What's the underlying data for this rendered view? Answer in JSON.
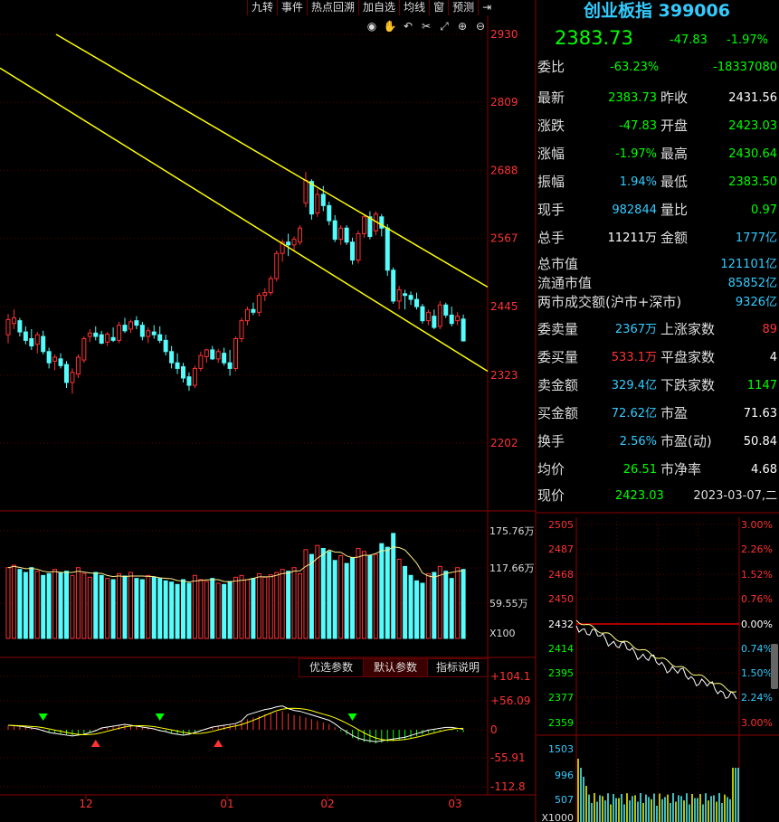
{
  "toolbar": {
    "items": [
      "九转",
      "事件",
      "热点回溯",
      "加自选",
      "均线",
      "窗",
      "预测"
    ],
    "exit_icon": "exit-icon"
  },
  "chart_icons": [
    "eye-icon",
    "hand-icon",
    "undo-icon",
    "scissors-icon",
    "fullscreen-icon",
    "zoom-in-icon",
    "zoom-out-icon"
  ],
  "price_axis": [
    "2930",
    "2809",
    "2688",
    "2567",
    "2445",
    "2323",
    "2202"
  ],
  "volume_axis": [
    "175.76万",
    "117.66万",
    "59.55万",
    "X100"
  ],
  "macd_axis": [
    "+104.1",
    "+56.09",
    "0",
    "-55.91",
    "-112.8"
  ],
  "macd_tabs": [
    "优选参数",
    "默认参数",
    "指标说明"
  ],
  "x_axis": [
    "12",
    "01",
    "02",
    "03"
  ],
  "quote": {
    "name": "创业板指 399006",
    "price": "2383.73",
    "change": "-47.83",
    "change_pct": "-1.97%",
    "weibi_label": "委比",
    "weibi_pct": "-63.23%",
    "weibi_val": "-18337080"
  },
  "stats1": [
    {
      "l1": "最新",
      "v1": "2383.73",
      "c1": "g",
      "l2": "昨收",
      "v2": "2431.56",
      "c2": "w"
    },
    {
      "l1": "涨跌",
      "v1": "-47.83",
      "c1": "g",
      "l2": "开盘",
      "v2": "2423.03",
      "c2": "g"
    },
    {
      "l1": "涨幅",
      "v1": "-1.97%",
      "c1": "g",
      "l2": "最高",
      "v2": "2430.64",
      "c2": "g"
    },
    {
      "l1": "振幅",
      "v1": "1.94%",
      "c1": "c",
      "l2": "最低",
      "v2": "2383.50",
      "c2": "g"
    },
    {
      "l1": "现手",
      "v1": "982844",
      "c1": "c",
      "l2": "量比",
      "v2": "0.97",
      "c2": "g"
    },
    {
      "l1": "总手",
      "v1": "11211万",
      "c1": "w",
      "l2": "金额",
      "v2": "1777亿",
      "c2": "c"
    }
  ],
  "stats2": [
    {
      "l": "总市值",
      "v": "121101亿"
    },
    {
      "l": "流通市值",
      "v": "85852亿"
    },
    {
      "l": "两市成交额(沪市+深市)",
      "v": "9326亿"
    }
  ],
  "stats3": [
    {
      "l1": "委卖量",
      "v1": "2367万",
      "c1": "c",
      "l2": "上涨家数",
      "v2": "89",
      "c2": "r"
    },
    {
      "l1": "委买量",
      "v1": "533.1万",
      "c1": "r",
      "l2": "平盘家数",
      "v2": "4",
      "c2": "w"
    },
    {
      "l1": "卖金额",
      "v1": "329.4亿",
      "c1": "c",
      "l2": "下跌家数",
      "v2": "1147",
      "c2": "g"
    },
    {
      "l1": "买金额",
      "v1": "72.62亿",
      "c1": "c",
      "l2": "市盈",
      "v2": "71.63",
      "c2": "w"
    },
    {
      "l1": "换手",
      "v1": "2.56%",
      "c1": "c",
      "l2": "市盈(动)",
      "v2": "50.84",
      "c2": "w"
    },
    {
      "l1": "均价",
      "v1": "26.51",
      "c1": "g",
      "l2": "市净率",
      "v2": "4.68",
      "c2": "w"
    }
  ],
  "footer": {
    "label": "现价",
    "price": "2423.03",
    "date": "2023-03-07,二"
  },
  "mini_left_axis": [
    "2505",
    "2487",
    "2468",
    "2450",
    "2432",
    "2414",
    "2395",
    "2377",
    "2359"
  ],
  "mini_right_axis": [
    "3.00%",
    "2.26%",
    "1.52%",
    "0.76%",
    "0.00%",
    "0.74%",
    "1.50%",
    "2.24%",
    "3.00%"
  ],
  "mini_vol_axis": [
    "1503",
    "996",
    "507",
    "X1000"
  ],
  "chart_data": {
    "type": "candlestick",
    "ohlc": [
      [
        2395,
        2432,
        2380,
        2422
      ],
      [
        2415,
        2440,
        2405,
        2425
      ],
      [
        2420,
        2425,
        2392,
        2400
      ],
      [
        2400,
        2410,
        2378,
        2385
      ],
      [
        2388,
        2405,
        2368,
        2375
      ],
      [
        2378,
        2400,
        2362,
        2395
      ],
      [
        2392,
        2402,
        2360,
        2365
      ],
      [
        2365,
        2372,
        2335,
        2345
      ],
      [
        2348,
        2360,
        2332,
        2355
      ],
      [
        2352,
        2362,
        2335,
        2340
      ],
      [
        2342,
        2348,
        2300,
        2310
      ],
      [
        2310,
        2335,
        2290,
        2328
      ],
      [
        2325,
        2360,
        2318,
        2355
      ],
      [
        2350,
        2392,
        2345,
        2388
      ],
      [
        2392,
        2405,
        2382,
        2398
      ],
      [
        2398,
        2410,
        2385,
        2392
      ],
      [
        2395,
        2402,
        2378,
        2380
      ],
      [
        2382,
        2400,
        2375,
        2396
      ],
      [
        2390,
        2408,
        2382,
        2385
      ],
      [
        2385,
        2418,
        2380,
        2412
      ],
      [
        2412,
        2425,
        2398,
        2402
      ],
      [
        2405,
        2422,
        2398,
        2418
      ],
      [
        2420,
        2428,
        2405,
        2412
      ],
      [
        2412,
        2418,
        2385,
        2392
      ],
      [
        2392,
        2408,
        2380,
        2402
      ],
      [
        2400,
        2412,
        2388,
        2395
      ],
      [
        2395,
        2410,
        2380,
        2385
      ],
      [
        2385,
        2395,
        2358,
        2365
      ],
      [
        2365,
        2375,
        2335,
        2345
      ],
      [
        2345,
        2362,
        2325,
        2335
      ],
      [
        2338,
        2345,
        2310,
        2318
      ],
      [
        2320,
        2328,
        2295,
        2305
      ],
      [
        2305,
        2340,
        2300,
        2335
      ],
      [
        2335,
        2365,
        2330,
        2358
      ],
      [
        2356,
        2370,
        2345,
        2368
      ],
      [
        2368,
        2375,
        2350,
        2352
      ],
      [
        2352,
        2370,
        2345,
        2365
      ],
      [
        2362,
        2372,
        2340,
        2345
      ],
      [
        2345,
        2368,
        2322,
        2335
      ],
      [
        2335,
        2392,
        2330,
        2388
      ],
      [
        2388,
        2425,
        2382,
        2420
      ],
      [
        2420,
        2445,
        2412,
        2440
      ],
      [
        2440,
        2452,
        2430,
        2435
      ],
      [
        2435,
        2470,
        2428,
        2465
      ],
      [
        2465,
        2478,
        2455,
        2470
      ],
      [
        2470,
        2500,
        2465,
        2495
      ],
      [
        2495,
        2545,
        2490,
        2540
      ],
      [
        2540,
        2565,
        2525,
        2560
      ],
      [
        2560,
        2575,
        2535,
        2555
      ],
      [
        2555,
        2570,
        2545,
        2565
      ],
      [
        2560,
        2590,
        2555,
        2585
      ],
      [
        2630,
        2685,
        2622,
        2670
      ],
      [
        2668,
        2672,
        2600,
        2610
      ],
      [
        2612,
        2655,
        2605,
        2645
      ],
      [
        2645,
        2660,
        2615,
        2625
      ],
      [
        2625,
        2632,
        2590,
        2598
      ],
      [
        2598,
        2608,
        2560,
        2565
      ],
      [
        2565,
        2590,
        2555,
        2585
      ],
      [
        2585,
        2590,
        2555,
        2560
      ],
      [
        2560,
        2568,
        2520,
        2528
      ],
      [
        2528,
        2580,
        2522,
        2575
      ],
      [
        2575,
        2610,
        2568,
        2605
      ],
      [
        2605,
        2615,
        2565,
        2570
      ],
      [
        2580,
        2615,
        2572,
        2610
      ],
      [
        2605,
        2610,
        2570,
        2585
      ],
      [
        2585,
        2592,
        2500,
        2510
      ],
      [
        2510,
        2515,
        2450,
        2455
      ],
      [
        2455,
        2482,
        2440,
        2475
      ],
      [
        2468,
        2475,
        2440,
        2465
      ],
      [
        2465,
        2472,
        2448,
        2458
      ],
      [
        2458,
        2470,
        2440,
        2445
      ],
      [
        2445,
        2450,
        2415,
        2420
      ],
      [
        2420,
        2440,
        2412,
        2435
      ],
      [
        2428,
        2440,
        2405,
        2408
      ],
      [
        2410,
        2455,
        2405,
        2448
      ],
      [
        2448,
        2452,
        2425,
        2430
      ],
      [
        2430,
        2445,
        2410,
        2415
      ],
      [
        2420,
        2435,
        2412,
        2428
      ],
      [
        2423,
        2431,
        2383,
        2384
      ]
    ],
    "volume_wan": [
      118,
      122,
      115,
      110,
      118,
      112,
      105,
      108,
      115,
      110,
      112,
      105,
      118,
      108,
      102,
      110,
      105,
      100,
      98,
      108,
      104,
      110,
      100,
      98,
      105,
      102,
      100,
      96,
      94,
      90,
      98,
      92,
      105,
      98,
      95,
      100,
      92,
      90,
      95,
      102,
      105,
      98,
      100,
      108,
      102,
      106,
      110,
      115,
      112,
      118,
      108,
      148,
      140,
      155,
      150,
      145,
      130,
      138,
      125,
      135,
      150,
      145,
      138,
      140,
      158,
      152,
      175,
      132,
      120,
      105,
      96,
      92,
      108,
      110,
      120,
      112,
      100,
      118,
      115
    ],
    "macd_hist": [
      10,
      9,
      8,
      6,
      4,
      2,
      -2,
      -6,
      -8,
      -10,
      -12,
      -14,
      -12,
      -10,
      -6,
      -2,
      4,
      6,
      8,
      10,
      12,
      10,
      8,
      6,
      4,
      2,
      -2,
      -4,
      -8,
      -10,
      -12,
      -10,
      -6,
      -2,
      2,
      6,
      8,
      10,
      12,
      14,
      20,
      26,
      30,
      34,
      38,
      40,
      44,
      46,
      40,
      36,
      34,
      30,
      26,
      22,
      18,
      14,
      6,
      -4,
      -12,
      -20,
      -26,
      -30,
      -32,
      -34,
      -32,
      -30,
      -28,
      -26,
      -24,
      -20,
      -16,
      -12,
      -8,
      -6,
      -4,
      -2,
      -2,
      -4,
      -6
    ]
  }
}
